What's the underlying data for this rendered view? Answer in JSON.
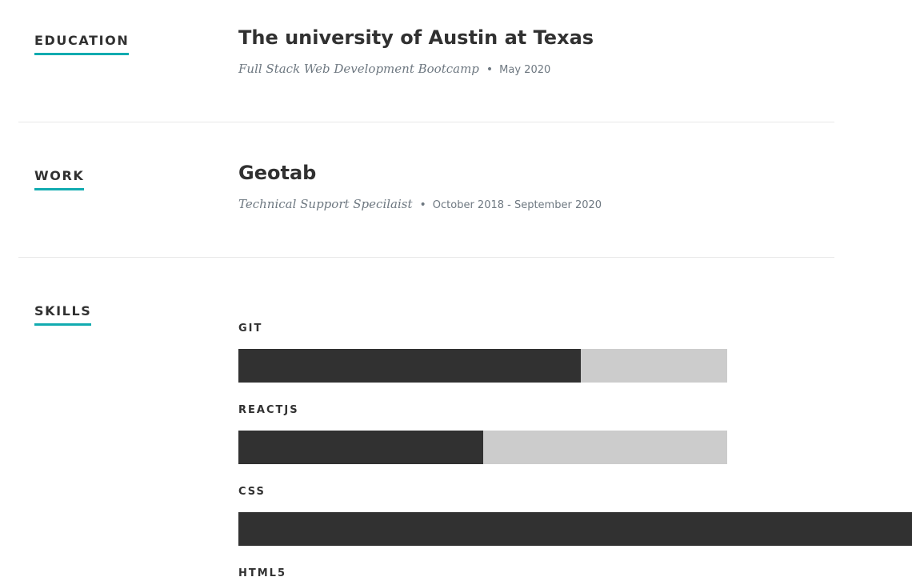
{
  "education": {
    "heading": "EDUCATION",
    "school": "The university of Austin at Texas",
    "degree": "Full Stack Web Development Bootcamp",
    "bullet": "•",
    "date": "May 2020"
  },
  "work": {
    "heading": "WORK",
    "company": "Geotab",
    "title": "Technical Support Specilaist",
    "bullet": "•",
    "dates": "October 2018 - September 2020"
  },
  "skills": {
    "heading": "SKILLS",
    "items": [
      {
        "name": "GIT",
        "level_percent": 70
      },
      {
        "name": "REACTJS",
        "level_percent": 50
      },
      {
        "name": "CSS",
        "level_percent": 100
      },
      {
        "name": "HTML5"
      }
    ]
  },
  "colors": {
    "accent": "#11ABB0",
    "bar_fill": "#313131",
    "bar_track": "#CCCCCC"
  }
}
